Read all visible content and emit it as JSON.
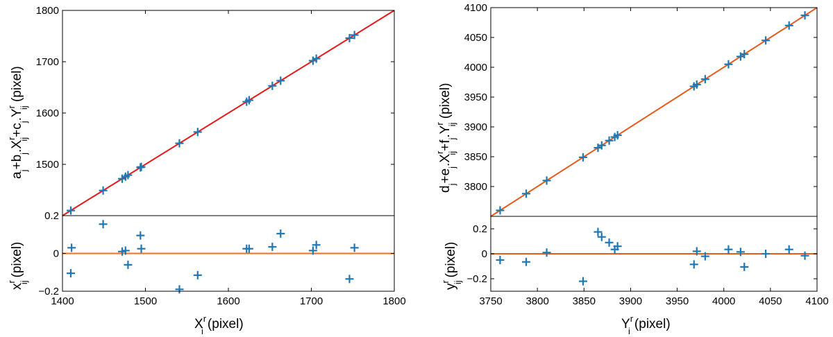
{
  "chart_data": [
    {
      "type": "scatter",
      "panel": "left",
      "main": {
        "xlim": [
          1400,
          1800
        ],
        "ylim": [
          1400,
          1800
        ],
        "xticks": [
          1400,
          1500,
          1600,
          1700,
          1800
        ],
        "yticks": [
          1500,
          1600,
          1700,
          1800
        ],
        "ylabel_base": "a",
        "fit_line": {
          "x": [
            1400,
            1800
          ],
          "y": [
            1400,
            1800
          ],
          "color": "#e31a1c"
        },
        "marker_color": "#1f77b4",
        "points_x": [
          1410,
          1449,
          1472,
          1476,
          1479,
          1494,
          1495,
          1541,
          1563,
          1622,
          1625,
          1653,
          1663,
          1702,
          1706,
          1746,
          1752
        ],
        "points_y": [
          1410,
          1449,
          1472,
          1476,
          1479,
          1494,
          1495,
          1541,
          1563,
          1622,
          1625,
          1653,
          1663,
          1702,
          1706,
          1746,
          1752
        ]
      },
      "residual": {
        "ylim": [
          -0.2,
          0.2
        ],
        "yticks": [
          -0.2,
          0,
          0.2
        ],
        "ytick_labels": [
          "−0.2",
          "0",
          "0.2"
        ],
        "zero_line_color": "#ff6a1a",
        "points_x": [
          1410,
          1411,
          1449,
          1472,
          1476,
          1479,
          1494,
          1495,
          1541,
          1563,
          1622,
          1625,
          1653,
          1663,
          1702,
          1706,
          1746,
          1752
        ],
        "points_y": [
          -0.105,
          0.03,
          0.155,
          0.01,
          0.015,
          -0.06,
          0.095,
          0.025,
          -0.19,
          -0.115,
          0.025,
          0.025,
          0.035,
          0.105,
          0.015,
          0.045,
          -0.135,
          0.03
        ]
      },
      "xlabel": "X",
      "xlabel_super": "r",
      "xlabel_sub": "i",
      "unit": "(pixel)",
      "ylabel_residual": "x",
      "ylabel_residual_super": "r",
      "ylabel_residual_sub": "ij"
    },
    {
      "type": "scatter",
      "panel": "right",
      "main": {
        "xlim": [
          3750,
          4100
        ],
        "ylim": [
          3750,
          4100
        ],
        "xticks": [
          3750,
          3800,
          3850,
          3900,
          3950,
          4000,
          4050,
          4100
        ],
        "yticks": [
          3800,
          3850,
          3900,
          3950,
          4000,
          4050,
          4100
        ],
        "ylabel_base": "d",
        "fit_line": {
          "x": [
            3750,
            4100
          ],
          "y": [
            3750,
            4100
          ],
          "color": "#e8591a"
        },
        "marker_color": "#1f77b4",
        "points_x": [
          3760,
          3788,
          3810,
          3849,
          3865,
          3869,
          3877,
          3883,
          3886,
          3968,
          3971,
          3980,
          4005,
          4018,
          4022,
          4045,
          4070,
          4087
        ],
        "points_y": [
          3760,
          3788,
          3810,
          3849,
          3865,
          3869,
          3877,
          3883,
          3886,
          3968,
          3971,
          3980,
          4005,
          4018,
          4022,
          4045,
          4070,
          4087
        ]
      },
      "residual": {
        "ylim": [
          -0.3,
          0.3
        ],
        "yticks": [
          -0.2,
          0,
          0.2
        ],
        "ytick_labels": [
          "−0.2",
          "0",
          "0.2"
        ],
        "zero_line_color": "#e8591a",
        "points_x": [
          3760,
          3788,
          3810,
          3849,
          3865,
          3869,
          3877,
          3883,
          3886,
          3968,
          3971,
          3980,
          4005,
          4018,
          4022,
          4045,
          4070,
          4087
        ],
        "points_y": [
          -0.05,
          -0.065,
          0.01,
          -0.22,
          0.175,
          0.135,
          0.09,
          0.035,
          0.06,
          -0.085,
          0.02,
          -0.02,
          0.035,
          0.015,
          -0.105,
          0.0,
          0.035,
          -0.015
        ]
      },
      "xlabel": "Y",
      "xlabel_super": "r",
      "xlabel_sub": "i",
      "unit": "(pixel)",
      "ylabel_residual": "y",
      "ylabel_residual_super": "r",
      "ylabel_residual_sub": "ij"
    }
  ],
  "labels": {
    "left_ylabel": "aⱼ+bⱼXʳᵢⱼ+cⱼYʳᵢⱼ (pixel)",
    "left_ylabel_parts": {
      "a": "a",
      "j1": "j",
      "plus1": "+b",
      "j2": "j",
      "X": ".X",
      "r1": "r",
      "ij1": "ij",
      "plus2": "+c",
      "j3": "j",
      "Y": ".Y",
      "r2": "r",
      "ij2": "ij",
      "unit": " (pixel)"
    },
    "right_ylabel_parts": {
      "d": "d",
      "j1": "j",
      "plus1": "+e",
      "j2": "j",
      "X": ".X",
      "r1": "r",
      "ij1": "ij",
      "plus2": "+f",
      "j3": "j",
      "Y": ".Y",
      "r2": "r",
      "ij2": "ij",
      "unit": " (pixel)"
    }
  }
}
